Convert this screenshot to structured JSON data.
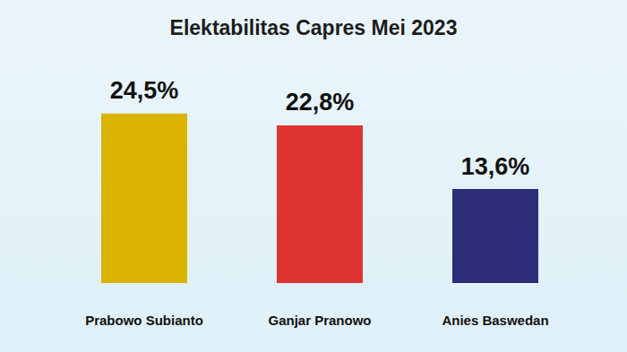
{
  "chart_data": {
    "type": "bar",
    "title": "Elektabilitas Capres Mei 2023",
    "categories": [
      "Prabowo Subianto",
      "Ganjar Pranowo",
      "Anies Baswedan"
    ],
    "values": [
      24.5,
      22.8,
      13.6
    ],
    "value_labels": [
      "24,5%",
      "22,8%",
      "13,6%"
    ],
    "colors": [
      "#d9b300",
      "#e03434",
      "#2d2d78"
    ],
    "ylim": [
      0,
      25
    ],
    "yticks": [
      0,
      25
    ],
    "grid": false,
    "data_labels": true,
    "tick_labels": "x"
  }
}
